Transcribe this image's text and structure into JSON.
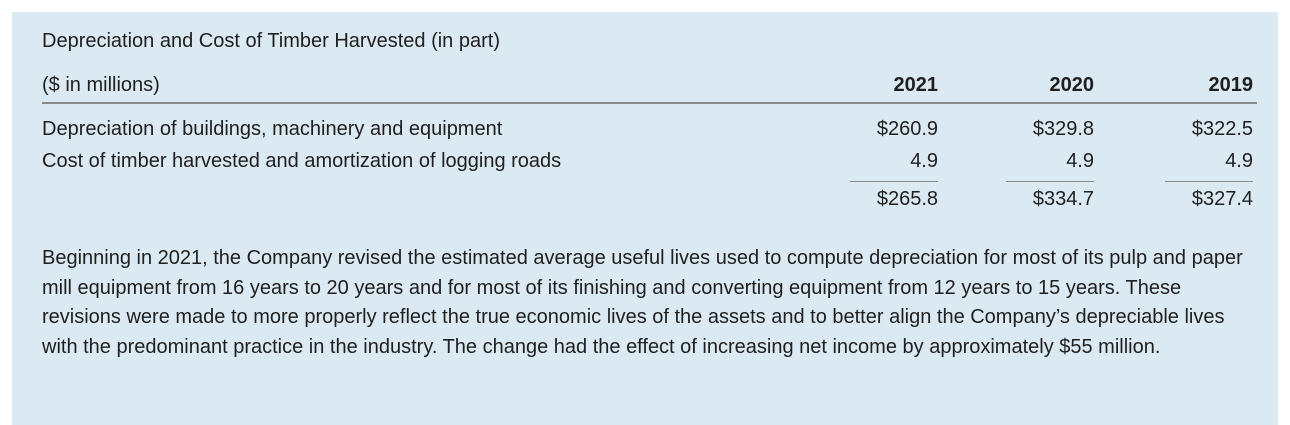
{
  "document": {
    "title": "Depreciation and Cost of Timber Harvested (in part)",
    "units_label": "($ in millions)",
    "years": [
      "2021",
      "2020",
      "2019"
    ],
    "rows": [
      {
        "label": "Depreciation of buildings, machinery and equipment",
        "values": [
          "$260.9",
          "$329.8",
          "$322.5"
        ]
      },
      {
        "label": "Cost of timber harvested and amortization of logging roads",
        "values": [
          "4.9",
          "4.9",
          "4.9"
        ]
      }
    ],
    "totals": [
      "$265.8",
      "$334.7",
      "$327.4"
    ],
    "note": "Beginning in 2021, the Company revised the estimated average useful lives used to compute depreciation for most of its pulp and paper mill equipment from 16 years to 20 years and for most of its finishing and converting equipment from 12 years to 15 years. These revisions were made to more properly reflect the true economic lives of the assets and to better align the Company’s depreciable lives with the predominant practice in the industry. The change had the effect of increasing net income by approximately $55 million."
  }
}
